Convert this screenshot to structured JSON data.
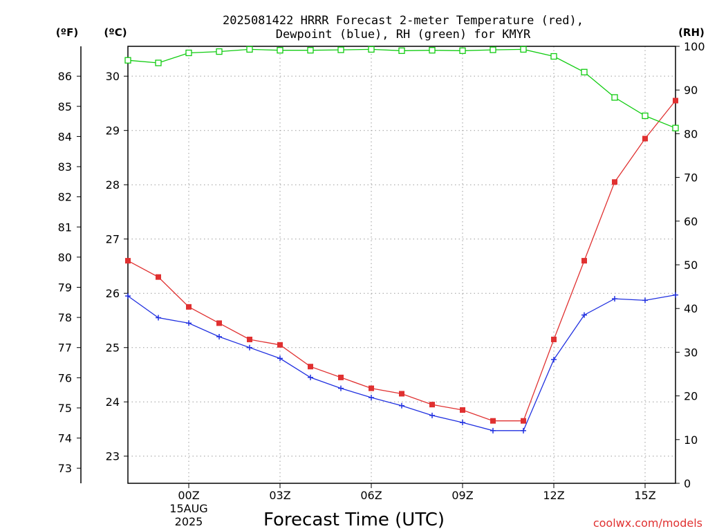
{
  "chart_data": {
    "type": "line",
    "title": [
      "2025081422 HRRR Forecast 2-meter Temperature (red),",
      "Dewpoint (blue), RH (green) for KMYR"
    ],
    "xlabel": "Forecast Time (UTC)",
    "credit": "coolwx.com/models",
    "axis_units": {
      "fahrenheit": "(ºF)",
      "celsius": "(ºC)",
      "rh": "(RH)"
    },
    "x": [
      "22Z",
      "23Z",
      "00Z",
      "01Z",
      "02Z",
      "03Z",
      "04Z",
      "05Z",
      "06Z",
      "07Z",
      "08Z",
      "09Z",
      "10Z",
      "11Z",
      "12Z",
      "13Z",
      "14Z",
      "15Z",
      "16Z"
    ],
    "x_ticks": [
      {
        "label": "00Z",
        "sub": [
          "15AUG",
          "2025"
        ]
      },
      {
        "label": "03Z"
      },
      {
        "label": "06Z"
      },
      {
        "label": "09Z"
      },
      {
        "label": "12Z"
      },
      {
        "label": "15Z"
      }
    ],
    "fahrenheit_ticks": [
      "73",
      "74",
      "75",
      "76",
      "77",
      "78",
      "79",
      "80",
      "81",
      "82",
      "83",
      "84",
      "85",
      "86"
    ],
    "celsius_ticks": [
      "23",
      "24",
      "25",
      "26",
      "27",
      "28",
      "29",
      "30"
    ],
    "rh_ticks": [
      "0",
      "10",
      "20",
      "30",
      "40",
      "50",
      "60",
      "70",
      "80",
      "90",
      "100"
    ],
    "ylim_celsius": [
      22.5,
      30.55
    ],
    "ylim_rh": [
      0,
      100
    ],
    "grid": true,
    "colors": {
      "temperature": "#e03030",
      "dewpoint": "#2030e0",
      "rh": "#10cc10"
    },
    "series": [
      {
        "name": "Temperature",
        "axis": "celsius",
        "marker": "square-filled",
        "values": [
          26.6,
          26.3,
          25.75,
          25.45,
          25.15,
          25.05,
          24.65,
          24.45,
          24.25,
          24.15,
          23.95,
          23.85,
          23.65,
          23.65,
          25.15,
          26.6,
          28.05,
          28.85,
          29.55
        ]
      },
      {
        "name": "Dewpoint",
        "axis": "celsius",
        "marker": "plus",
        "values": [
          25.95,
          25.55,
          25.45,
          25.2,
          25.0,
          24.8,
          24.45,
          24.25,
          24.08,
          23.93,
          23.75,
          23.62,
          23.47,
          23.47,
          24.78,
          25.6,
          25.9,
          25.87,
          25.97
        ]
      },
      {
        "name": "RH",
        "axis": "rh",
        "marker": "square-open",
        "values": [
          96.8,
          96.2,
          98.5,
          98.8,
          99.3,
          99.1,
          99.1,
          99.2,
          99.3,
          99.0,
          99.1,
          99.0,
          99.2,
          99.3,
          97.7,
          94.1,
          88.3,
          84.1,
          81.3
        ]
      }
    ]
  }
}
